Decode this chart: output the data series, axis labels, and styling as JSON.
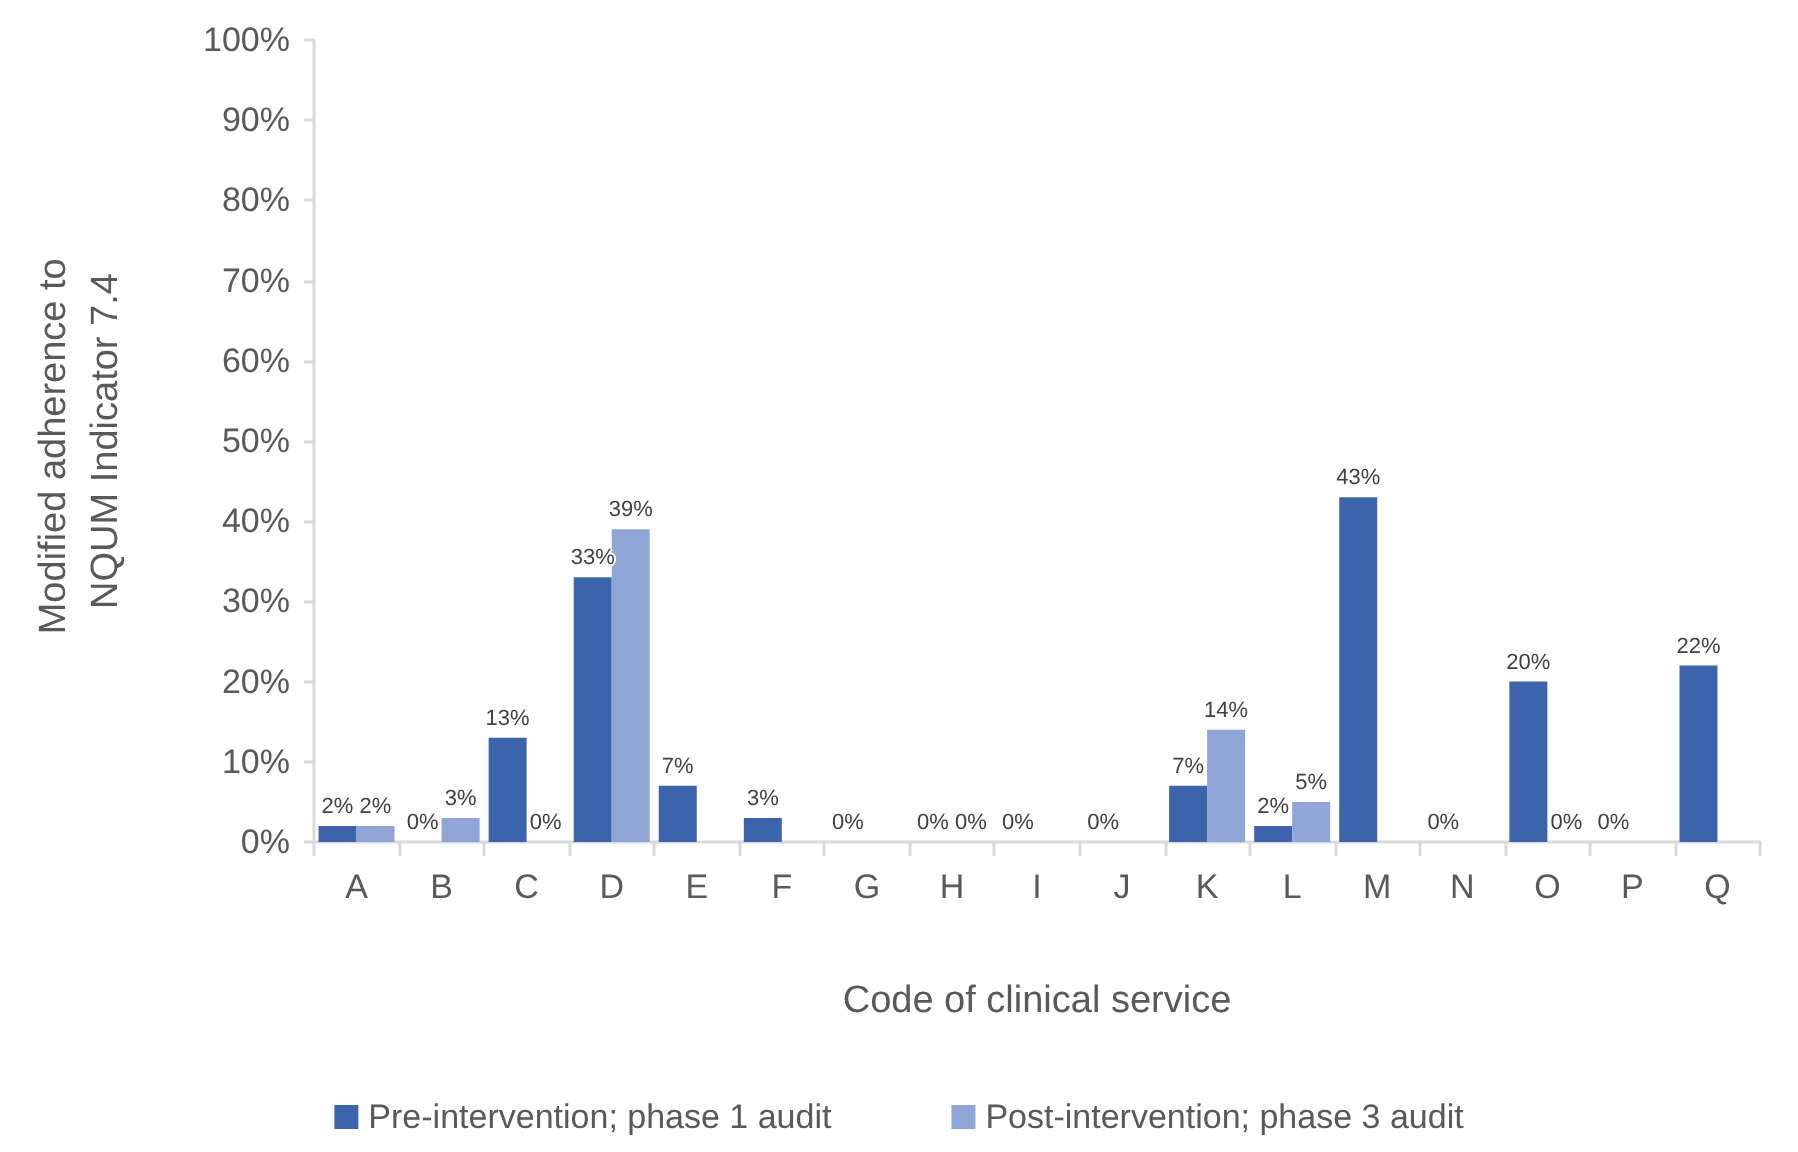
{
  "chart_data": {
    "type": "bar",
    "xlabel": "Code of clinical service",
    "ylabel": "Modified adherence to NQUM Indicator 7.4",
    "categories": [
      "A",
      "B",
      "C",
      "D",
      "E",
      "F",
      "G",
      "H",
      "I",
      "J",
      "K",
      "L",
      "M",
      "N",
      "O",
      "P",
      "Q"
    ],
    "series": [
      {
        "name": "Pre-intervention; phase 1 audit",
        "color": "#3b64ad",
        "values": [
          2,
          0,
          13,
          33,
          7,
          3,
          0,
          0,
          0,
          0,
          7,
          2,
          43,
          0,
          20,
          0,
          22
        ],
        "value_labels": [
          "2%",
          "0%",
          "13%",
          "33%",
          "7%",
          "3%",
          "0%",
          "0%",
          "0%",
          "0%",
          "7%",
          "2%",
          "43%",
          "0%",
          "20%",
          "0%",
          "22%"
        ]
      },
      {
        "name": "Post-intervention; phase 3 audit",
        "color": "#8fa5d6",
        "values": [
          2,
          3,
          0,
          39,
          null,
          null,
          null,
          0,
          null,
          null,
          14,
          5,
          null,
          null,
          0,
          null,
          null
        ],
        "value_labels": [
          "2%",
          "3%",
          "0%",
          "39%",
          null,
          null,
          null,
          "0%",
          null,
          null,
          "14%",
          "5%",
          null,
          null,
          "0%",
          null,
          null
        ]
      }
    ],
    "ylim": [
      0,
      100
    ],
    "yticks": [
      {
        "value": 0,
        "label": "0%"
      },
      {
        "value": 10,
        "label": "10%"
      },
      {
        "value": 20,
        "label": "20%"
      },
      {
        "value": 30,
        "label": "30%"
      },
      {
        "value": 40,
        "label": "40%"
      },
      {
        "value": 50,
        "label": "50%"
      },
      {
        "value": 60,
        "label": "60%"
      },
      {
        "value": 70,
        "label": "70%"
      },
      {
        "value": 80,
        "label": "80%"
      },
      {
        "value": 90,
        "label": "90%"
      },
      {
        "value": 100,
        "label": "100%"
      }
    ],
    "legend": "bottom"
  }
}
